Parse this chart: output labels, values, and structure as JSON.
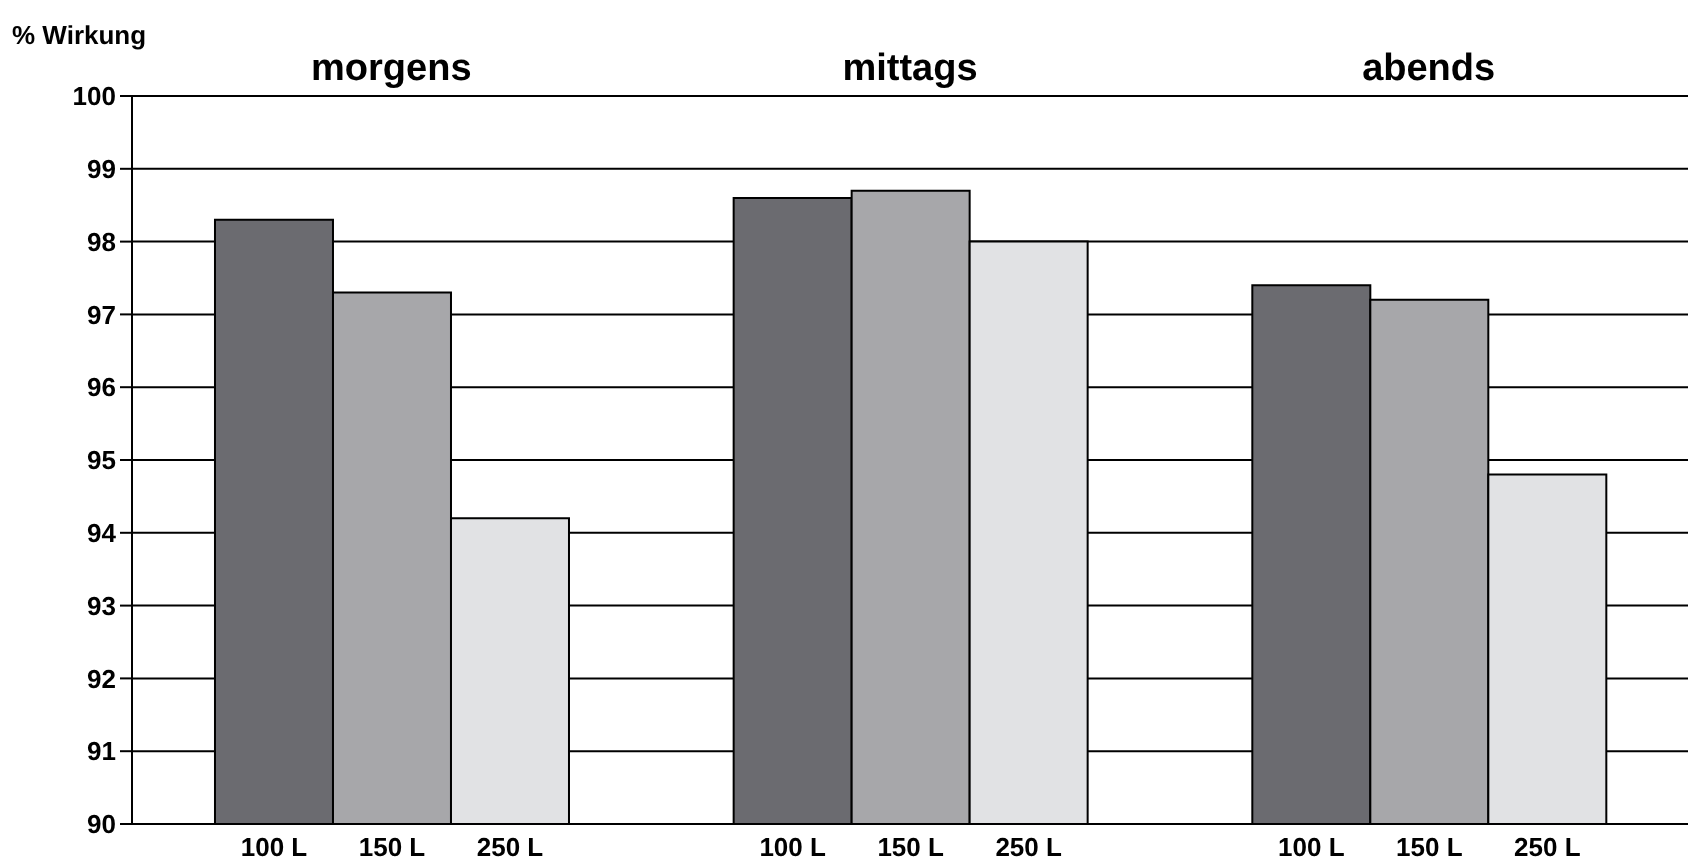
{
  "chart_data": {
    "type": "bar",
    "ylabel": "% Wirkung",
    "categories": [
      "morgens",
      "mittags",
      "abends"
    ],
    "series": [
      {
        "name": "100 L",
        "color": "#6b6b70",
        "values": [
          98.3,
          98.6,
          97.4
        ]
      },
      {
        "name": "150 L",
        "color": "#a7a7aa",
        "values": [
          97.3,
          98.7,
          97.2
        ]
      },
      {
        "name": "250 L",
        "color": "#e1e2e4",
        "values": [
          94.2,
          98.0,
          94.8
        ]
      }
    ],
    "ylim": [
      90,
      100
    ],
    "yticks": [
      90,
      91,
      92,
      93,
      94,
      95,
      96,
      97,
      98,
      99,
      100
    ],
    "grid": "y",
    "legend": false
  }
}
